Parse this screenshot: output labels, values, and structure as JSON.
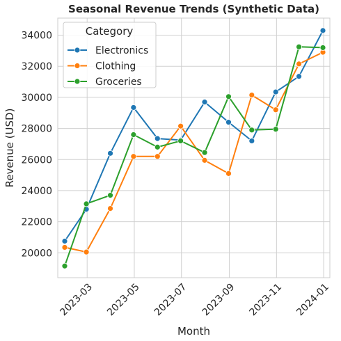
{
  "chart_data": {
    "type": "line",
    "title": "Seasonal Revenue Trends (Synthetic Data)",
    "xlabel": "Month",
    "ylabel": "Revenue (USD)",
    "x": [
      "2023-01-31",
      "2023-02-28",
      "2023-03-31",
      "2023-04-30",
      "2023-05-31",
      "2023-06-30",
      "2023-07-31",
      "2023-08-31",
      "2023-09-30",
      "2023-10-31",
      "2023-11-30",
      "2023-12-31"
    ],
    "x_ticks": [
      "2023-03",
      "2023-05",
      "2023-07",
      "2023-09",
      "2023-11",
      "2024-01"
    ],
    "x_tick_dates": [
      "2023-03-01",
      "2023-05-01",
      "2023-07-01",
      "2023-09-01",
      "2023-11-01",
      "2024-01-01"
    ],
    "xlim": [
      "2023-01-22",
      "2024-01-09"
    ],
    "ylim": [
      18400,
      35100
    ],
    "y_ticks": [
      20000,
      22000,
      24000,
      26000,
      28000,
      30000,
      32000,
      34000
    ],
    "grid": true,
    "legend": {
      "title": "Category",
      "placement": "top-left"
    },
    "series": [
      {
        "name": "Electronics",
        "color": "#1f77b4",
        "values": [
          20750,
          22800,
          26400,
          29350,
          27350,
          27250,
          29700,
          28400,
          27200,
          30350,
          31350,
          34300
        ]
      },
      {
        "name": "Clothing",
        "color": "#ff7f0e",
        "values": [
          20350,
          20050,
          22850,
          26200,
          26200,
          28150,
          25950,
          25100,
          30150,
          29200,
          32150,
          32900
        ]
      },
      {
        "name": "Groceries",
        "color": "#2ca02c",
        "values": [
          19150,
          23150,
          23700,
          27600,
          26800,
          27200,
          26450,
          30050,
          27900,
          27950,
          33250,
          33200
        ]
      }
    ]
  }
}
